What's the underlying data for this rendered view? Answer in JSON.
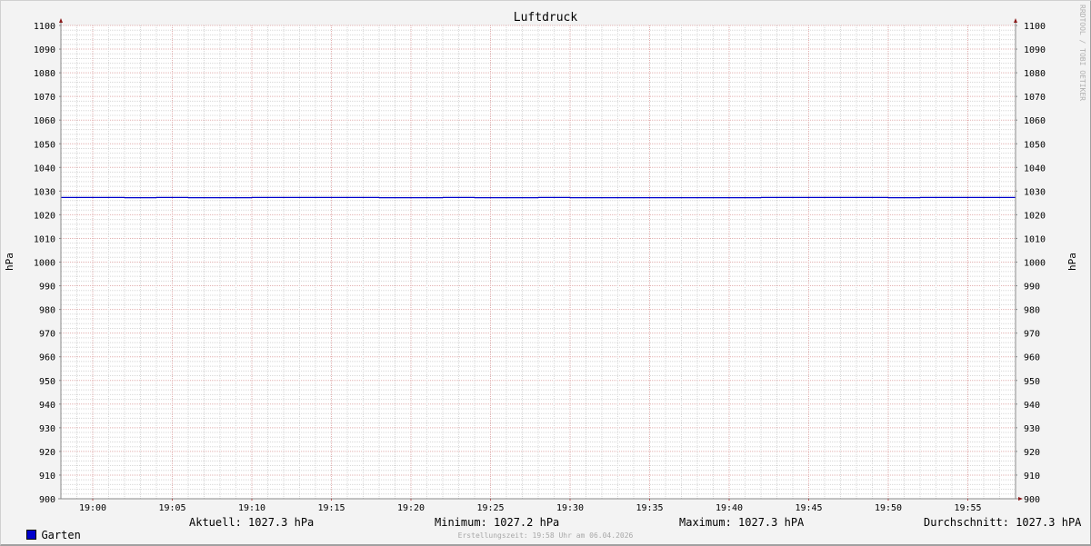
{
  "chart_data": {
    "type": "line",
    "title": "Luftdruck",
    "ylabel": "hPa",
    "ylabel_right": "hPa",
    "ylim": [
      900,
      1100
    ],
    "yticks": [
      900,
      910,
      920,
      930,
      940,
      950,
      960,
      970,
      980,
      990,
      1000,
      1010,
      1020,
      1030,
      1040,
      1050,
      1060,
      1070,
      1080,
      1090,
      1100
    ],
    "xlim": [
      "18:58",
      "19:58"
    ],
    "xticks": [
      "19:00",
      "19:05",
      "19:10",
      "19:15",
      "19:20",
      "19:25",
      "19:30",
      "19:35",
      "19:40",
      "19:45",
      "19:50",
      "19:55"
    ],
    "grid": true,
    "series": [
      {
        "name": "Garten",
        "color": "#0000cc",
        "step": true,
        "x": [
          "18:58",
          "19:02",
          "19:04",
          "19:06",
          "19:10",
          "19:18",
          "19:22",
          "19:24",
          "19:28",
          "19:30",
          "19:42",
          "19:50",
          "19:52",
          "19:58"
        ],
        "y": [
          1027.3,
          1027.2,
          1027.3,
          1027.2,
          1027.3,
          1027.2,
          1027.3,
          1027.2,
          1027.3,
          1027.2,
          1027.3,
          1027.2,
          1027.3,
          1027.3
        ]
      }
    ]
  },
  "legend": {
    "series_name": "Garten",
    "current": "Aktuell: 1027.3 hPa",
    "minimum": "Minimum: 1027.2 hPa",
    "maximum": "Maximum: 1027.3 hPA",
    "average": "Durchschnitt: 1027.3 hPA"
  },
  "footer": "Erstellungszeit: 19:58 Uhr am 06.04.2026",
  "watermark": "RRDTOOL / TOBI OETIKER"
}
